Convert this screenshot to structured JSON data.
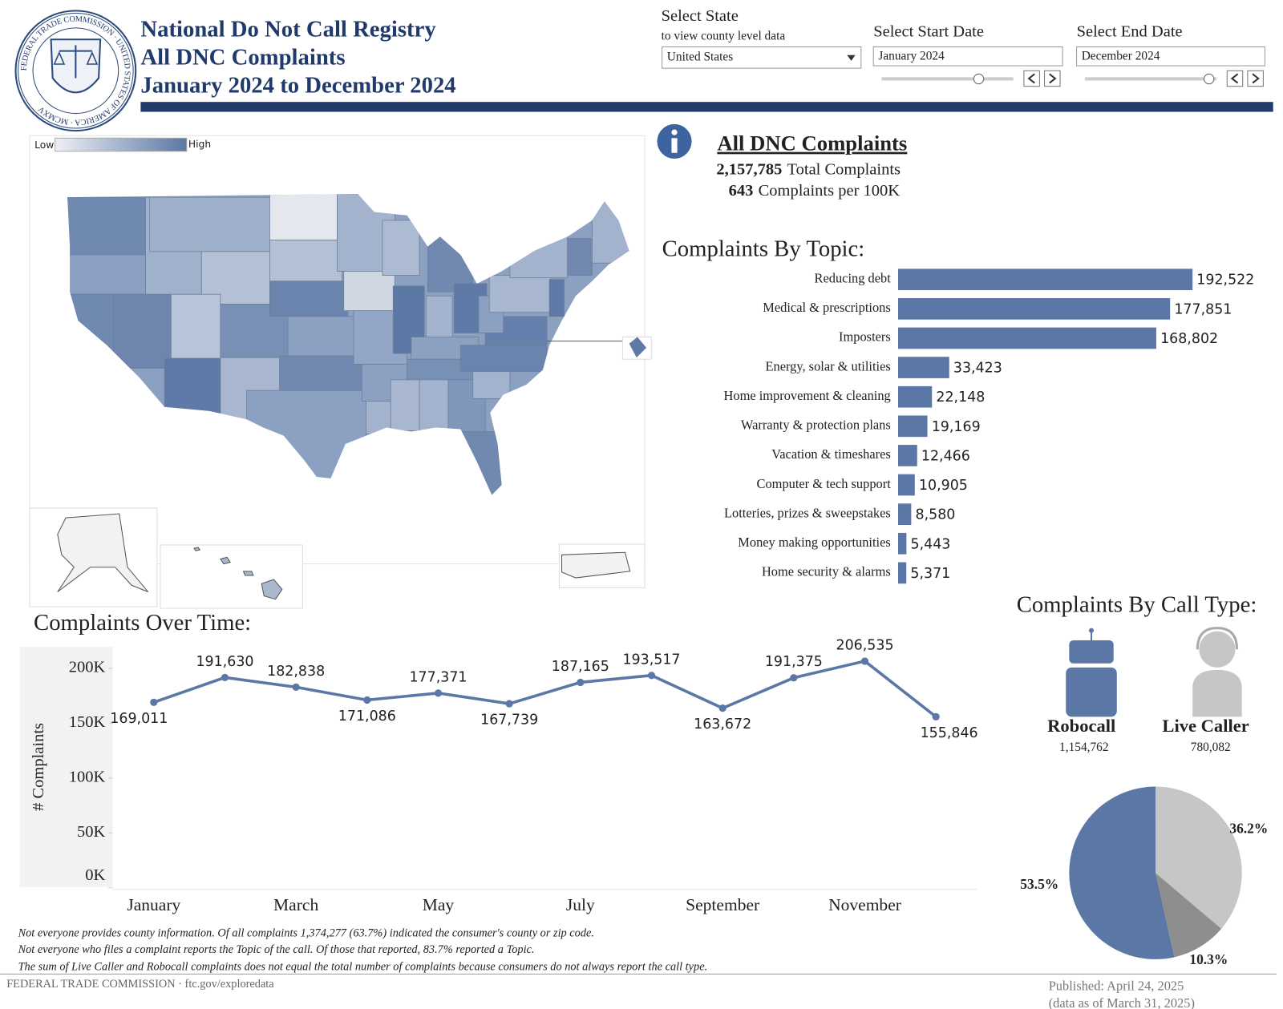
{
  "header": {
    "title_lines": [
      "National Do Not Call Registry",
      "All DNC Complaints",
      "January 2024 to December 2024"
    ],
    "seal_text": "FEDERAL TRADE COMMISSION · UNITED STATES OF AMERICA · MCMXV"
  },
  "filters": {
    "state": {
      "label": "Select State",
      "sublabel": "to view county level data",
      "value": "United States"
    },
    "start": {
      "label": "Select Start Date",
      "value": "January 2024"
    },
    "end": {
      "label": "Select End Date",
      "value": "December 2024"
    }
  },
  "map": {
    "legend_low": "Low",
    "legend_high": "High"
  },
  "summary": {
    "title": "All DNC Complaints",
    "total": "2,157,785",
    "total_text": "Total Complaints",
    "per_100k": "643",
    "per_100k_text": "Complaints per 100K"
  },
  "sections": {
    "topic": "Complaints By Topic:",
    "time": "Complaints Over Time:",
    "call_type": "Complaints By Call Type:"
  },
  "call_types": [
    {
      "name": "Robocall",
      "count": "1,154,762"
    },
    {
      "name": "Live Caller",
      "count": "780,082"
    }
  ],
  "chart_data": [
    {
      "type": "hbar",
      "color": "#5b77a5",
      "categories": [
        "Reducing debt",
        "Medical & prescriptions",
        "Imposters",
        "Energy, solar & utilities",
        "Home improvement & cleaning",
        "Warranty & protection plans",
        "Vacation & timeshares",
        "Computer & tech support",
        "Lotteries, prizes & sweepstakes",
        "Money making opportunities",
        "Home security & alarms"
      ],
      "values": [
        192522,
        177851,
        168802,
        33423,
        22148,
        19169,
        12466,
        10905,
        8580,
        5443,
        5371
      ],
      "value_labels": [
        "192,522",
        "177,851",
        "168,802",
        "33,423",
        "22,148",
        "19,169",
        "12,466",
        "10,905",
        "8,580",
        "5,443",
        "5,371"
      ]
    },
    {
      "type": "line",
      "color": "#5b77a5",
      "y_label": "# Complaints",
      "categories": [
        "January",
        null,
        "March",
        null,
        "May",
        null,
        "July",
        null,
        "September",
        null,
        "November",
        null
      ],
      "values": [
        169011,
        191630,
        182838,
        171086,
        177371,
        167739,
        187165,
        193517,
        163672,
        191375,
        206535,
        155846
      ],
      "value_labels": [
        "169,011",
        "191,630",
        "182,838",
        "171,086",
        "177,371",
        "167,739",
        "187,165",
        "193,517",
        "163,672",
        "191,375",
        "206,535",
        "155,846"
      ],
      "ylim": [
        0,
        215000
      ],
      "yticks": [
        {
          "value": 0,
          "label": "0K"
        },
        {
          "value": 50000,
          "label": "50K"
        },
        {
          "value": 100000,
          "label": "100K"
        },
        {
          "value": 150000,
          "label": "150K"
        },
        {
          "value": 200000,
          "label": "200K"
        }
      ]
    },
    {
      "type": "pie",
      "values": [
        36.2,
        10.3,
        53.5
      ],
      "value_labels": [
        "36.2%",
        "10.3%",
        "53.5%"
      ],
      "colors": [
        "#c6c6c6",
        "#8e8e8e",
        "#5b77a5"
      ]
    }
  ],
  "notes": [
    "Not everyone provides county information.  Of all complaints 1,374,277 (63.7%) indicated the consumer's county or zip code.",
    "Not everyone who files a complaint reports the Topic of the call.  Of those that reported, 83.7% reported a Topic.",
    "The sum of Live Caller and Robocall complaints does not equal the total number of complaints because consumers do not always report the call type."
  ],
  "footer": {
    "agency": "FEDERAL TRADE COMMISSION · ftc.gov/exploredata",
    "published": "Published: April 24, 2025",
    "data_as_of": "(data as of March 31, 2025)"
  }
}
